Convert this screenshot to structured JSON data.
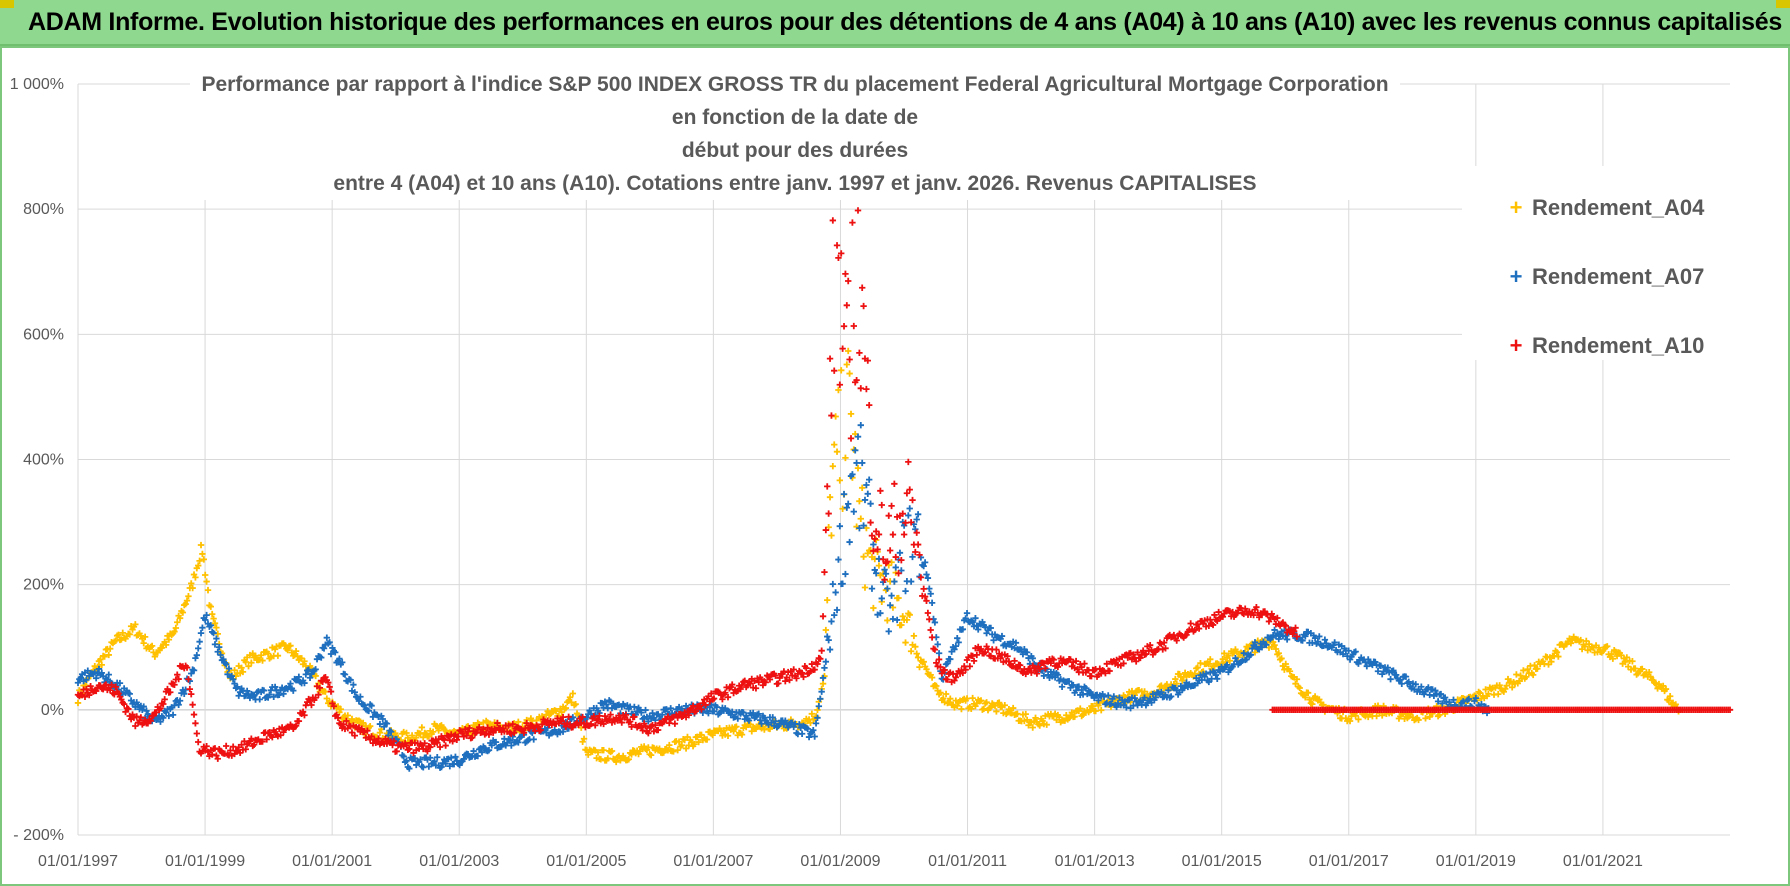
{
  "banner": {
    "title": "ADAM Informe. Evolution historique des performances en euros pour des détentions de 4 ans (A04) à 10 ans (A10) avec les revenus connus capitalisés",
    "background": "#8fd88f"
  },
  "chart_data": {
    "type": "scatter",
    "title_lines": [
      "Performance par rapport à l'indice S&P 500 INDEX GROSS TR  du placement Federal Agricultural Mortgage Corporation en fonction de la date de",
      "début pour des durées",
      "entre 4 (A04) et 10 ans (A10).  Cotations entre janv. 1997 et janv. 2026. Revenus CAPITALISES"
    ],
    "xlabel": "",
    "ylabel": "",
    "x_range": [
      1997.0,
      2023.0
    ],
    "ylim": [
      -200,
      1000
    ],
    "y_ticks": [
      -200,
      0,
      200,
      400,
      600,
      800,
      1000
    ],
    "y_tick_labels": [
      "- 200%",
      "0%",
      "200%",
      "400%",
      "600%",
      "800%",
      "1 000%"
    ],
    "x_ticks": [
      1997,
      1999,
      2001,
      2003,
      2005,
      2007,
      2009,
      2011,
      2013,
      2015,
      2017,
      2019,
      2021
    ],
    "x_tick_labels": [
      "01/01/1997",
      "01/01/1999",
      "01/01/2001",
      "01/01/2003",
      "01/01/2005",
      "01/01/2007",
      "01/01/2009",
      "01/01/2011",
      "01/01/2013",
      "01/01/2015",
      "01/01/2017",
      "01/01/2019",
      "01/01/2021"
    ],
    "grid": true,
    "legend_position": "top-right",
    "series": [
      {
        "name": "Rendement_A04",
        "color": "#ffc000",
        "x_end": 2022.2,
        "points": [
          [
            1997.0,
            20
          ],
          [
            1997.3,
            70
          ],
          [
            1997.6,
            110
          ],
          [
            1997.9,
            130
          ],
          [
            1998.2,
            90
          ],
          [
            1998.5,
            120
          ],
          [
            1998.8,
            200
          ],
          [
            1998.95,
            260
          ],
          [
            1999.1,
            150
          ],
          [
            1999.4,
            50
          ],
          [
            1999.7,
            80
          ],
          [
            2000.0,
            90
          ],
          [
            2000.3,
            100
          ],
          [
            2000.6,
            70
          ],
          [
            2000.9,
            20
          ],
          [
            2001.2,
            -10
          ],
          [
            2001.5,
            -30
          ],
          [
            2001.8,
            -40
          ],
          [
            2002.2,
            -45
          ],
          [
            2002.6,
            -30
          ],
          [
            2003.0,
            -40
          ],
          [
            2003.4,
            -25
          ],
          [
            2003.8,
            -30
          ],
          [
            2004.2,
            -20
          ],
          [
            2004.6,
            0
          ],
          [
            2004.8,
            20
          ],
          [
            2005.0,
            -70
          ],
          [
            2005.5,
            -75
          ],
          [
            2006.0,
            -65
          ],
          [
            2006.5,
            -55
          ],
          [
            2007.0,
            -40
          ],
          [
            2007.5,
            -30
          ],
          [
            2008.0,
            -25
          ],
          [
            2008.4,
            -20
          ],
          [
            2008.6,
            -10
          ],
          [
            2008.75,
            50
          ],
          [
            2008.85,
            350
          ],
          [
            2009.0,
            420
          ],
          [
            2009.15,
            480
          ],
          [
            2009.3,
            300
          ],
          [
            2009.5,
            220
          ],
          [
            2009.7,
            200
          ],
          [
            2009.85,
            180
          ],
          [
            2010.0,
            150
          ],
          [
            2010.2,
            100
          ],
          [
            2010.5,
            30
          ],
          [
            2010.8,
            10
          ],
          [
            2011.2,
            10
          ],
          [
            2011.6,
            0
          ],
          [
            2012.0,
            -20
          ],
          [
            2012.5,
            -10
          ],
          [
            2013.0,
            0
          ],
          [
            2013.5,
            20
          ],
          [
            2014.0,
            30
          ],
          [
            2014.5,
            60
          ],
          [
            2015.0,
            80
          ],
          [
            2015.5,
            100
          ],
          [
            2015.8,
            110
          ],
          [
            2016.1,
            50
          ],
          [
            2016.5,
            10
          ],
          [
            2017.0,
            -10
          ],
          [
            2017.5,
            0
          ],
          [
            2018.0,
            -10
          ],
          [
            2018.5,
            0
          ],
          [
            2019.0,
            20
          ],
          [
            2019.5,
            40
          ],
          [
            2020.0,
            70
          ],
          [
            2020.5,
            110
          ],
          [
            2020.8,
            100
          ],
          [
            2021.0,
            100
          ],
          [
            2021.3,
            80
          ],
          [
            2021.6,
            60
          ],
          [
            2021.9,
            40
          ],
          [
            2022.1,
            10
          ],
          [
            2022.2,
            0
          ]
        ]
      },
      {
        "name": "Rendement_A07",
        "color": "#1f6fbf",
        "x_end": 2019.2,
        "points": [
          [
            1997.0,
            50
          ],
          [
            1997.3,
            60
          ],
          [
            1997.6,
            40
          ],
          [
            1997.9,
            10
          ],
          [
            1998.2,
            -20
          ],
          [
            1998.5,
            0
          ],
          [
            1998.8,
            60
          ],
          [
            1999.0,
            150
          ],
          [
            1999.2,
            100
          ],
          [
            1999.5,
            30
          ],
          [
            1999.8,
            20
          ],
          [
            2000.1,
            30
          ],
          [
            2000.4,
            40
          ],
          [
            2000.7,
            60
          ],
          [
            2000.9,
            110
          ],
          [
            2001.1,
            80
          ],
          [
            2001.4,
            20
          ],
          [
            2001.8,
            -20
          ],
          [
            2002.2,
            -85
          ],
          [
            2002.6,
            -85
          ],
          [
            2003.0,
            -80
          ],
          [
            2003.4,
            -60
          ],
          [
            2003.8,
            -50
          ],
          [
            2004.2,
            -40
          ],
          [
            2004.6,
            -30
          ],
          [
            2005.0,
            -10
          ],
          [
            2005.3,
            10
          ],
          [
            2005.6,
            0
          ],
          [
            2006.0,
            -10
          ],
          [
            2006.5,
            0
          ],
          [
            2007.0,
            0
          ],
          [
            2007.5,
            -10
          ],
          [
            2008.0,
            -20
          ],
          [
            2008.3,
            -30
          ],
          [
            2008.6,
            -40
          ],
          [
            2008.8,
            100
          ],
          [
            2009.0,
            250
          ],
          [
            2009.2,
            380
          ],
          [
            2009.35,
            350
          ],
          [
            2009.6,
            200
          ],
          [
            2009.8,
            150
          ],
          [
            2010.0,
            250
          ],
          [
            2010.2,
            280
          ],
          [
            2010.4,
            200
          ],
          [
            2010.6,
            50
          ],
          [
            2010.8,
            100
          ],
          [
            2011.0,
            150
          ],
          [
            2011.4,
            120
          ],
          [
            2011.8,
            100
          ],
          [
            2012.2,
            60
          ],
          [
            2012.6,
            40
          ],
          [
            2013.0,
            20
          ],
          [
            2013.5,
            10
          ],
          [
            2014.0,
            20
          ],
          [
            2014.5,
            40
          ],
          [
            2015.0,
            60
          ],
          [
            2015.4,
            90
          ],
          [
            2015.8,
            120
          ],
          [
            2016.2,
            120
          ],
          [
            2016.6,
            110
          ],
          [
            2017.0,
            90
          ],
          [
            2017.4,
            70
          ],
          [
            2017.8,
            50
          ],
          [
            2018.2,
            30
          ],
          [
            2018.6,
            10
          ],
          [
            2019.0,
            10
          ],
          [
            2019.2,
            0
          ]
        ]
      },
      {
        "name": "Rendement_A10",
        "color": "#ee1111",
        "x_end": 2023.0,
        "points": [
          [
            1997.0,
            20
          ],
          [
            1997.3,
            40
          ],
          [
            1997.6,
            30
          ],
          [
            1997.9,
            -20
          ],
          [
            1998.2,
            -10
          ],
          [
            1998.5,
            40
          ],
          [
            1998.7,
            80
          ],
          [
            1998.9,
            -60
          ],
          [
            1999.2,
            -70
          ],
          [
            1999.6,
            -60
          ],
          [
            2000.0,
            -40
          ],
          [
            2000.4,
            -30
          ],
          [
            2000.7,
            20
          ],
          [
            2000.9,
            50
          ],
          [
            2001.1,
            -20
          ],
          [
            2001.5,
            -40
          ],
          [
            2002.0,
            -60
          ],
          [
            2002.5,
            -60
          ],
          [
            2003.0,
            -40
          ],
          [
            2003.5,
            -30
          ],
          [
            2004.0,
            -30
          ],
          [
            2004.5,
            -20
          ],
          [
            2005.0,
            -20
          ],
          [
            2005.5,
            -10
          ],
          [
            2006.0,
            -30
          ],
          [
            2006.5,
            -10
          ],
          [
            2007.0,
            20
          ],
          [
            2007.5,
            40
          ],
          [
            2008.0,
            50
          ],
          [
            2008.4,
            60
          ],
          [
            2008.7,
            80
          ],
          [
            2008.85,
            500
          ],
          [
            2008.92,
            780
          ],
          [
            2009.0,
            650
          ],
          [
            2009.1,
            520
          ],
          [
            2009.25,
            700
          ],
          [
            2009.35,
            600
          ],
          [
            2009.5,
            350
          ],
          [
            2009.7,
            250
          ],
          [
            2009.9,
            300
          ],
          [
            2010.1,
            320
          ],
          [
            2010.3,
            200
          ],
          [
            2010.5,
            80
          ],
          [
            2010.7,
            50
          ],
          [
            2010.9,
            60
          ],
          [
            2011.2,
            100
          ],
          [
            2011.6,
            80
          ],
          [
            2012.0,
            60
          ],
          [
            2012.3,
            80
          ],
          [
            2012.7,
            70
          ],
          [
            2013.0,
            60
          ],
          [
            2013.5,
            80
          ],
          [
            2014.0,
            100
          ],
          [
            2014.5,
            130
          ],
          [
            2015.0,
            150
          ],
          [
            2015.5,
            160
          ],
          [
            2015.9,
            140
          ],
          [
            2016.2,
            120
          ]
        ],
        "flat_from": 2015.8,
        "flat_value": 0
      }
    ]
  }
}
